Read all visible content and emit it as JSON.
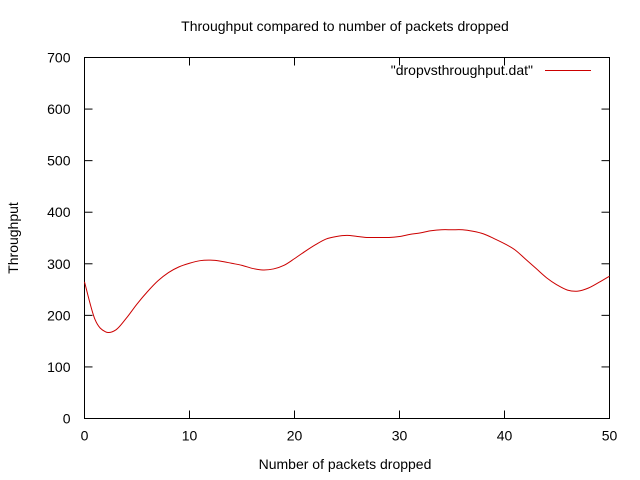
{
  "chart_data": {
    "type": "line",
    "title": "Throughput compared to number of packets dropped",
    "xlabel": "Number of packets dropped",
    "ylabel": "Throughput",
    "xlim": [
      0,
      50
    ],
    "ylim": [
      0,
      700
    ],
    "x_ticks": [
      0,
      10,
      20,
      30,
      40,
      50
    ],
    "y_ticks": [
      0,
      100,
      200,
      300,
      400,
      500,
      600,
      700
    ],
    "grid": false,
    "legend_position": "top-right",
    "series": [
      {
        "name": "\"dropvsthroughput.dat\"",
        "color": "#cc0000",
        "x": [
          0,
          1,
          2,
          3,
          4,
          5,
          6,
          7,
          8,
          9,
          10,
          11,
          12,
          13,
          14,
          15,
          16,
          17,
          18,
          19,
          20,
          21,
          22,
          23,
          24,
          25,
          26,
          27,
          28,
          29,
          30,
          31,
          32,
          33,
          34,
          35,
          36,
          37,
          38,
          39,
          40,
          41,
          42,
          43,
          44,
          45,
          46,
          47,
          48,
          49,
          50
        ],
        "y": [
          265,
          192,
          168,
          172,
          195,
          222,
          246,
          267,
          283,
          294,
          301,
          306,
          307,
          305,
          301,
          297,
          291,
          288,
          290,
          297,
          310,
          324,
          337,
          348,
          353,
          355,
          353,
          351,
          351,
          351,
          353,
          357,
          360,
          364,
          366,
          366,
          366,
          363,
          358,
          349,
          339,
          327,
          309,
          291,
          273,
          259,
          249,
          247,
          253,
          264,
          276
        ]
      }
    ]
  }
}
